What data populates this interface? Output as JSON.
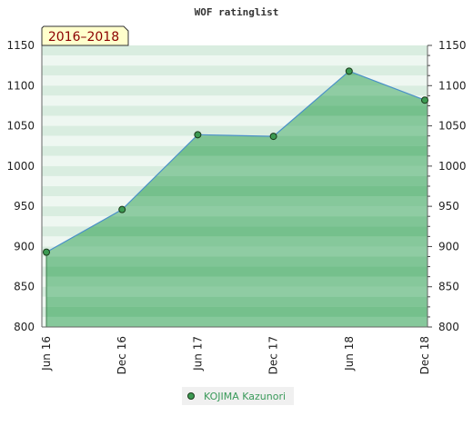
{
  "chart_data": {
    "type": "area",
    "title": "WOF ratinglist",
    "period_label": "2016–2018",
    "x": [
      "Jun 16",
      "Dec 16",
      "Jun 17",
      "Dec 17",
      "Jun 18",
      "Dec 18"
    ],
    "series": [
      {
        "name": "KOJIMA Kazunori",
        "values": [
          893,
          946,
          1039,
          1037,
          1118,
          1082
        ]
      }
    ],
    "ylim": [
      800,
      1150
    ],
    "y_ticks": [
      800,
      850,
      900,
      950,
      1000,
      1050,
      1100,
      1150
    ],
    "xlabel": "",
    "ylabel": "",
    "grid": "horizontal bands",
    "legend_position": "bottom-center",
    "colors": {
      "line": "#4a90c8",
      "fill": "#6dbf8a",
      "marker": "#3c9a52",
      "badge_bg": "#ffffcc",
      "badge_text": "#8b0000",
      "legend_text": "#3a9a5a"
    }
  }
}
